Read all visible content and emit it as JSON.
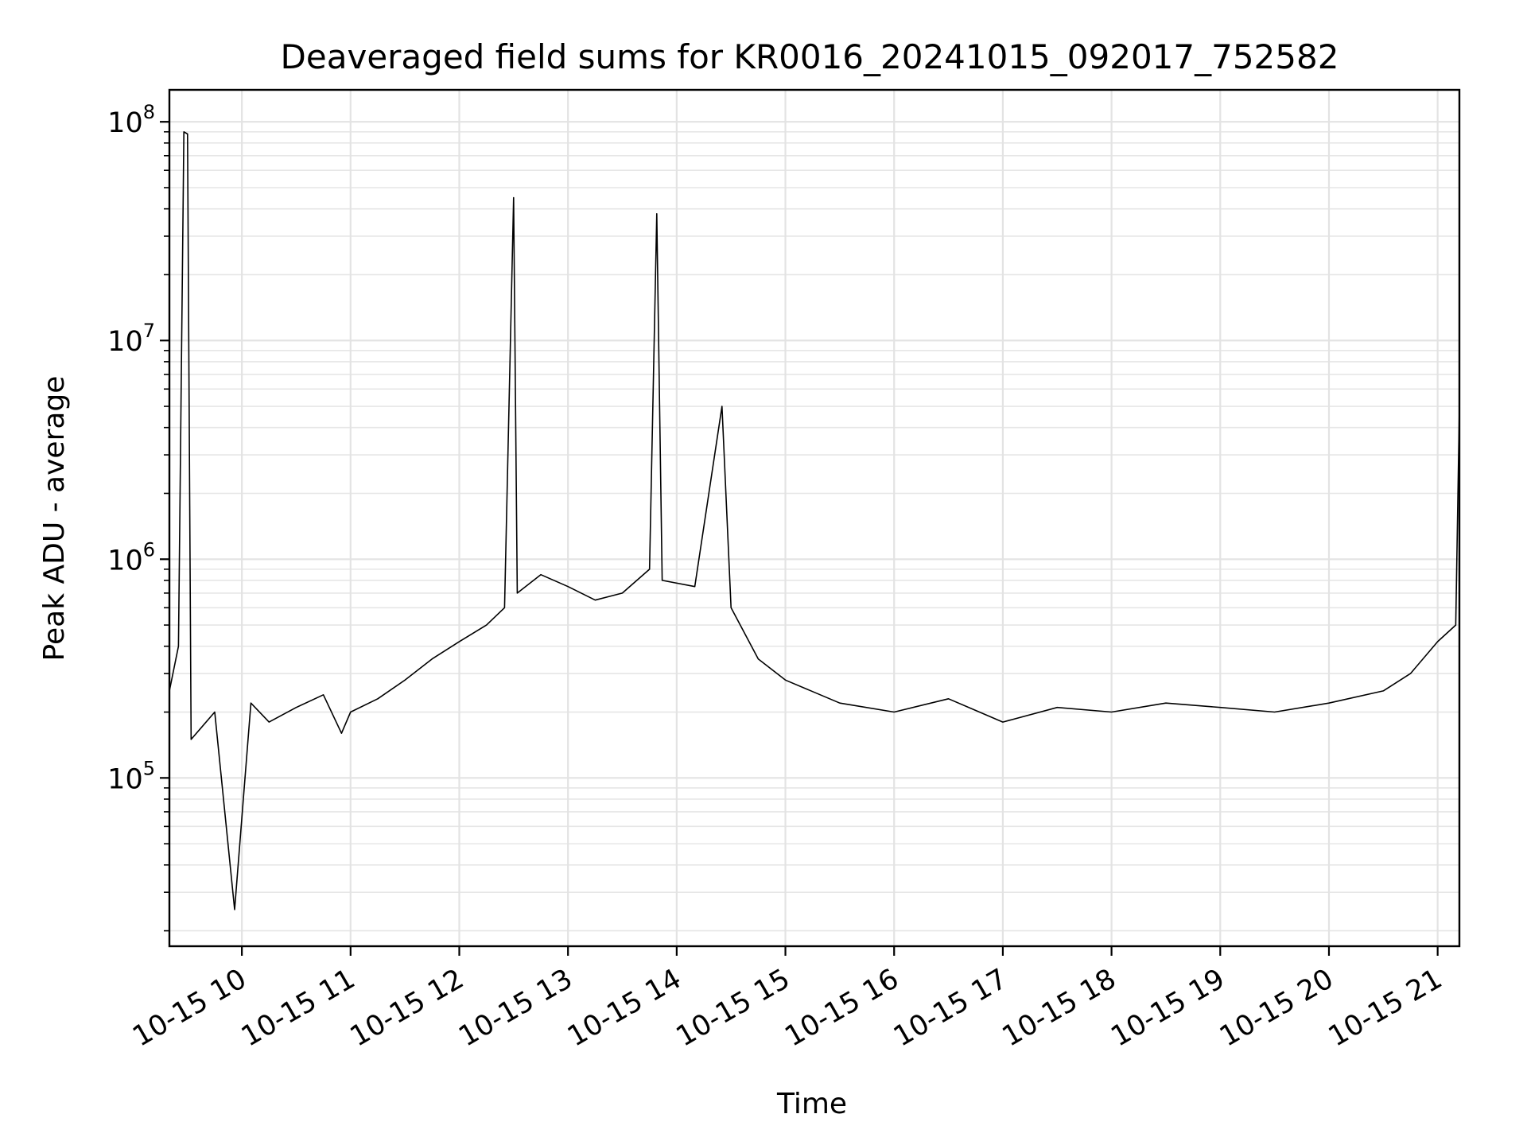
{
  "chart_data": {
    "type": "line",
    "title": "Deaveraged field sums for KR0016_20241015_092017_752582",
    "xlabel": "Time",
    "ylabel": "Peak ADU - average",
    "x_range": [
      "2024-10-15 09:20",
      "2024-10-15 21:12"
    ],
    "yscale": "log",
    "ylim": [
      17000,
      140000000
    ],
    "grid": true,
    "line_color": "#000000",
    "x_ticks": [
      {
        "value": "2024-10-15 10:00",
        "label": "10-15 10"
      },
      {
        "value": "2024-10-15 11:00",
        "label": "10-15 11"
      },
      {
        "value": "2024-10-15 12:00",
        "label": "10-15 12"
      },
      {
        "value": "2024-10-15 13:00",
        "label": "10-15 13"
      },
      {
        "value": "2024-10-15 14:00",
        "label": "10-15 14"
      },
      {
        "value": "2024-10-15 15:00",
        "label": "10-15 15"
      },
      {
        "value": "2024-10-15 16:00",
        "label": "10-15 16"
      },
      {
        "value": "2024-10-15 17:00",
        "label": "10-15 17"
      },
      {
        "value": "2024-10-15 18:00",
        "label": "10-15 18"
      },
      {
        "value": "2024-10-15 19:00",
        "label": "10-15 19"
      },
      {
        "value": "2024-10-15 20:00",
        "label": "10-15 20"
      },
      {
        "value": "2024-10-15 21:00",
        "label": "10-15 21"
      }
    ],
    "y_ticks": [
      {
        "value": 100000,
        "base": "10",
        "exp": "5"
      },
      {
        "value": 1000000,
        "base": "10",
        "exp": "6"
      },
      {
        "value": 10000000,
        "base": "10",
        "exp": "7"
      },
      {
        "value": 100000000,
        "base": "10",
        "exp": "8"
      }
    ],
    "series": [
      {
        "values": [
          [
            "2024-10-15 09:20",
            250000
          ],
          [
            "2024-10-15 09:25",
            400000
          ],
          [
            "2024-10-15 09:28",
            90000000
          ],
          [
            "2024-10-15 09:30",
            88000000
          ],
          [
            "2024-10-15 09:32",
            150000
          ],
          [
            "2024-10-15 09:45",
            200000
          ],
          [
            "2024-10-15 09:56",
            25000
          ],
          [
            "2024-10-15 10:05",
            220000
          ],
          [
            "2024-10-15 10:15",
            180000
          ],
          [
            "2024-10-15 10:30",
            210000
          ],
          [
            "2024-10-15 10:45",
            240000
          ],
          [
            "2024-10-15 10:55",
            160000
          ],
          [
            "2024-10-15 11:00",
            200000
          ],
          [
            "2024-10-15 11:15",
            230000
          ],
          [
            "2024-10-15 11:30",
            280000
          ],
          [
            "2024-10-15 11:45",
            350000
          ],
          [
            "2024-10-15 12:00",
            420000
          ],
          [
            "2024-10-15 12:15",
            500000
          ],
          [
            "2024-10-15 12:25",
            600000
          ],
          [
            "2024-10-15 12:30",
            45000000
          ],
          [
            "2024-10-15 12:32",
            700000
          ],
          [
            "2024-10-15 12:45",
            850000
          ],
          [
            "2024-10-15 13:00",
            750000
          ],
          [
            "2024-10-15 13:15",
            650000
          ],
          [
            "2024-10-15 13:30",
            700000
          ],
          [
            "2024-10-15 13:45",
            900000
          ],
          [
            "2024-10-15 13:49",
            38000000
          ],
          [
            "2024-10-15 13:52",
            800000
          ],
          [
            "2024-10-15 14:10",
            750000
          ],
          [
            "2024-10-15 14:25",
            5000000
          ],
          [
            "2024-10-15 14:30",
            600000
          ],
          [
            "2024-10-15 14:45",
            350000
          ],
          [
            "2024-10-15 15:00",
            280000
          ],
          [
            "2024-10-15 15:30",
            220000
          ],
          [
            "2024-10-15 16:00",
            200000
          ],
          [
            "2024-10-15 16:30",
            230000
          ],
          [
            "2024-10-15 17:00",
            180000
          ],
          [
            "2024-10-15 17:30",
            210000
          ],
          [
            "2024-10-15 18:00",
            200000
          ],
          [
            "2024-10-15 18:30",
            220000
          ],
          [
            "2024-10-15 19:00",
            210000
          ],
          [
            "2024-10-15 19:30",
            200000
          ],
          [
            "2024-10-15 20:00",
            220000
          ],
          [
            "2024-10-15 20:30",
            250000
          ],
          [
            "2024-10-15 20:45",
            300000
          ],
          [
            "2024-10-15 21:00",
            420000
          ],
          [
            "2024-10-15 21:10",
            500000
          ],
          [
            "2024-10-15 21:12",
            5000000
          ]
        ]
      }
    ]
  }
}
